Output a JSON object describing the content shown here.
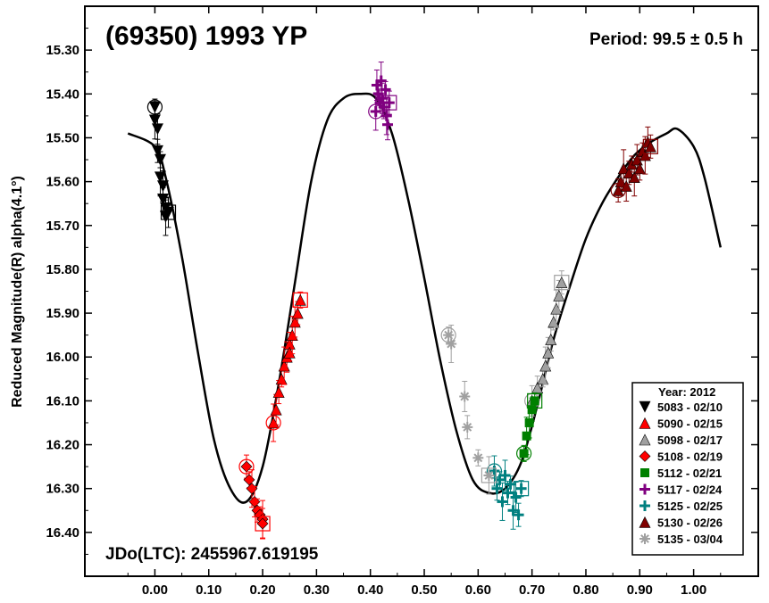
{
  "chart_data": {
    "type": "scatter",
    "title": "(69350) 1993 YP",
    "annotation_period": "Period: 99.5 ± 0.5 h",
    "annotation_jd": "JDo(LTC): 2455967.619195",
    "xlabel": "",
    "ylabel": "Reduced Magnitude(R) alpha(4.1°)",
    "xlim": [
      -0.13,
      1.12
    ],
    "ylim": [
      15.2,
      16.5
    ],
    "y_inverted": true,
    "x_ticks": [
      0.0,
      0.1,
      0.2,
      0.3,
      0.4,
      0.5,
      0.6,
      0.7,
      0.8,
      0.9,
      1.0
    ],
    "x_tick_labels": [
      "0.00",
      "0.10",
      "0.20",
      "0.30",
      "0.40",
      "0.50",
      "0.60",
      "0.70",
      "0.80",
      "0.90",
      "1.00"
    ],
    "y_ticks": [
      15.3,
      15.4,
      15.5,
      15.6,
      15.7,
      15.8,
      15.9,
      16.0,
      16.1,
      16.2,
      16.3,
      16.4
    ],
    "y_tick_labels": [
      "15.30",
      "15.40",
      "15.50",
      "15.60",
      "15.70",
      "15.80",
      "15.90",
      "16.00",
      "16.10",
      "16.20",
      "16.30",
      "16.40"
    ],
    "grid": false,
    "legend": {
      "title": "Year: 2012",
      "position": "bottom-right"
    },
    "fit_curve": {
      "x": [
        -0.05,
        0.0,
        0.02,
        0.05,
        0.08,
        0.11,
        0.14,
        0.17,
        0.2,
        0.23,
        0.26,
        0.29,
        0.32,
        0.35,
        0.38,
        0.41,
        0.44,
        0.47,
        0.5,
        0.53,
        0.56,
        0.59,
        0.62,
        0.65,
        0.68,
        0.71,
        0.74,
        0.77,
        0.8,
        0.83,
        0.86,
        0.89,
        0.92,
        0.95,
        0.97,
        1.0,
        1.02,
        1.05
      ],
      "y": [
        15.49,
        15.52,
        15.59,
        15.77,
        15.99,
        16.19,
        16.3,
        16.33,
        16.25,
        16.06,
        15.83,
        15.6,
        15.46,
        15.41,
        15.4,
        15.41,
        15.49,
        15.64,
        15.82,
        16.01,
        16.17,
        16.28,
        16.31,
        16.3,
        16.24,
        16.11,
        15.96,
        15.84,
        15.73,
        15.65,
        15.59,
        15.54,
        15.51,
        15.49,
        15.48,
        15.52,
        15.59,
        15.75
      ]
    },
    "series": [
      {
        "name": "5083 - 02/10",
        "marker": "triangle-down",
        "color": "#000000",
        "x": [
          0.0,
          0.0,
          0.005,
          0.005,
          0.01,
          0.01,
          0.015,
          0.015,
          0.02,
          0.02,
          0.025
        ],
        "y": [
          15.43,
          15.46,
          15.48,
          15.53,
          15.55,
          15.59,
          15.61,
          15.64,
          15.66,
          15.68,
          15.67
        ]
      },
      {
        "name": "5090 - 02/15",
        "marker": "triangle-up",
        "color": "#ff0000",
        "x": [
          0.22,
          0.225,
          0.23,
          0.235,
          0.24,
          0.245,
          0.25,
          0.25,
          0.255,
          0.26,
          0.265,
          0.27
        ],
        "y": [
          16.15,
          16.12,
          16.08,
          16.05,
          16.02,
          16.0,
          15.97,
          15.99,
          15.95,
          15.92,
          15.9,
          15.87
        ]
      },
      {
        "name": "5098 - 02/17",
        "marker": "triangle-up",
        "color": "#a0a0a0",
        "x": [
          0.7,
          0.71,
          0.72,
          0.725,
          0.73,
          0.735,
          0.74,
          0.745,
          0.75,
          0.755
        ],
        "y": [
          16.1,
          16.07,
          16.05,
          16.02,
          15.99,
          15.96,
          15.92,
          15.89,
          15.86,
          15.83
        ]
      },
      {
        "name": "5108 - 02/19",
        "marker": "diamond",
        "color": "#ff0000",
        "x": [
          0.17,
          0.175,
          0.18,
          0.185,
          0.19,
          0.195,
          0.2,
          0.2
        ],
        "y": [
          16.25,
          16.28,
          16.3,
          16.33,
          16.35,
          16.36,
          16.37,
          16.38
        ]
      },
      {
        "name": "5112 - 02/21",
        "marker": "square",
        "color": "#008000",
        "x": [
          0.685,
          0.69,
          0.695,
          0.7,
          0.705
        ],
        "y": [
          16.22,
          16.18,
          16.15,
          16.12,
          16.1
        ]
      },
      {
        "name": "5117 - 02/24",
        "marker": "plus",
        "color": "#800080",
        "x": [
          0.41,
          0.412,
          0.415,
          0.418,
          0.42,
          0.422,
          0.425,
          0.428,
          0.43,
          0.432,
          0.435
        ],
        "y": [
          15.44,
          15.38,
          15.4,
          15.42,
          15.37,
          15.41,
          15.43,
          15.39,
          15.45,
          15.47,
          15.42
        ]
      },
      {
        "name": "5125 - 02/25",
        "marker": "plus",
        "color": "#008080",
        "x": [
          0.63,
          0.635,
          0.64,
          0.645,
          0.65,
          0.655,
          0.66,
          0.665,
          0.67,
          0.675,
          0.68
        ],
        "y": [
          16.26,
          16.3,
          16.28,
          16.33,
          16.27,
          16.31,
          16.29,
          16.35,
          16.32,
          16.36,
          16.3
        ]
      },
      {
        "name": "5130 - 02/26",
        "marker": "triangle-up",
        "color": "#800000",
        "x": [
          0.86,
          0.865,
          0.87,
          0.875,
          0.88,
          0.885,
          0.89,
          0.895,
          0.9,
          0.905,
          0.91,
          0.915,
          0.92
        ],
        "y": [
          15.62,
          15.6,
          15.57,
          15.61,
          15.58,
          15.56,
          15.59,
          15.55,
          15.57,
          15.53,
          15.54,
          15.51,
          15.52
        ]
      },
      {
        "name": "5135 - 03/04",
        "marker": "asterisk",
        "color": "#a0a0a0",
        "x": [
          0.545,
          0.55,
          0.575,
          0.58,
          0.6,
          0.62
        ],
        "y": [
          15.95,
          15.97,
          16.09,
          16.16,
          16.23,
          16.27
        ]
      }
    ]
  }
}
